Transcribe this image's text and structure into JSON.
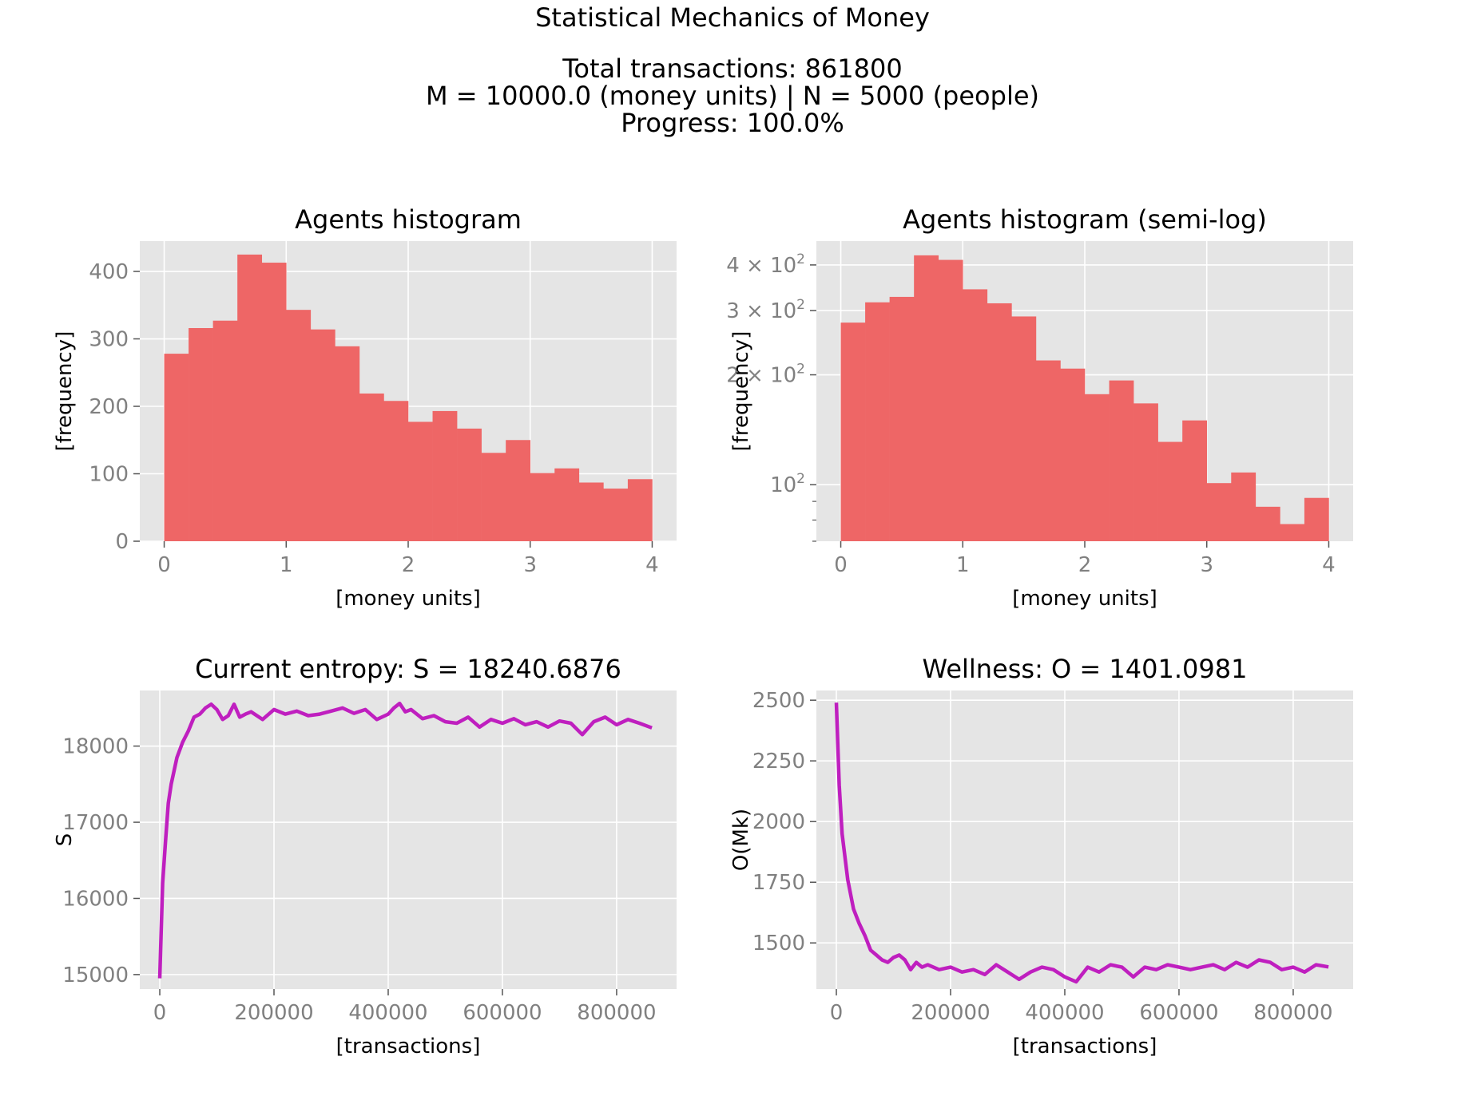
{
  "figure": {
    "title": "Statistical Mechanics of Money",
    "total_transactions_line": "Total transactions: 861800",
    "params_line": "M = 10000.0 (money units)   |    N = 5000 (people)",
    "progress_line": "Progress: 100.0%"
  },
  "colors": {
    "axes_bg": "#e5e5e5",
    "grid": "#ffffff",
    "bar": "#ee6666",
    "line": "#bf1fbf",
    "tick_text": "#808080"
  },
  "chart_data": [
    {
      "type": "bar",
      "title": "Agents histogram",
      "xlabel": "[money units]",
      "ylabel": "[frequency]",
      "xlim": [
        -0.2,
        4.2
      ],
      "ylim": [
        0,
        445
      ],
      "xticks": [
        0,
        1,
        2,
        3,
        4
      ],
      "yticks": [
        0,
        100,
        200,
        300,
        400
      ],
      "bin_edges": [
        0,
        0.2,
        0.4,
        0.6,
        0.8,
        1.0,
        1.2,
        1.4,
        1.6,
        1.8,
        2.0,
        2.2,
        2.4,
        2.6,
        2.8,
        3.0,
        3.2,
        3.4,
        3.6,
        3.8,
        4.0
      ],
      "values": [
        278,
        316,
        327,
        425,
        413,
        343,
        314,
        289,
        219,
        208,
        177,
        193,
        167,
        131,
        150,
        101,
        108,
        87,
        78,
        92
      ],
      "grid": true
    },
    {
      "type": "bar",
      "title": "Agents histogram (semi-log)",
      "xlabel": "[money units]",
      "ylabel": "[frequency]",
      "yscale": "log",
      "xlim": [
        -0.2,
        4.2
      ],
      "ylim": [
        70,
        465
      ],
      "xticks": [
        0,
        1,
        2,
        3,
        4
      ],
      "yticks": [
        {
          "value": 100,
          "base": "10",
          "exp": "2"
        },
        {
          "value": 200,
          "base": "2 × 10",
          "exp": "2"
        },
        {
          "value": 300,
          "base": "3 × 10",
          "exp": "2"
        },
        {
          "value": 400,
          "base": "4 × 10",
          "exp": "2"
        }
      ],
      "bin_edges": [
        0,
        0.2,
        0.4,
        0.6,
        0.8,
        1.0,
        1.2,
        1.4,
        1.6,
        1.8,
        2.0,
        2.2,
        2.4,
        2.6,
        2.8,
        3.0,
        3.2,
        3.4,
        3.6,
        3.8,
        4.0
      ],
      "values": [
        278,
        316,
        327,
        425,
        413,
        343,
        314,
        289,
        219,
        208,
        177,
        193,
        167,
        131,
        150,
        101,
        108,
        87,
        78,
        92
      ],
      "grid": true
    },
    {
      "type": "line",
      "title": "Current entropy: S = 18240.6876",
      "xlabel": "[transactions]",
      "ylabel": "S",
      "xlim": [
        -35000,
        905000
      ],
      "ylim": [
        14810,
        18730
      ],
      "xticks": [
        0,
        200000,
        400000,
        600000,
        800000
      ],
      "yticks": [
        15000,
        16000,
        17000,
        18000
      ],
      "x": [
        0,
        5000,
        10000,
        15000,
        20000,
        30000,
        40000,
        50000,
        60000,
        70000,
        80000,
        90000,
        100000,
        110000,
        120000,
        130000,
        140000,
        150000,
        160000,
        180000,
        200000,
        220000,
        240000,
        260000,
        280000,
        300000,
        320000,
        340000,
        360000,
        380000,
        400000,
        410000,
        420000,
        430000,
        440000,
        460000,
        480000,
        500000,
        520000,
        540000,
        560000,
        580000,
        600000,
        620000,
        640000,
        660000,
        680000,
        700000,
        720000,
        740000,
        760000,
        780000,
        800000,
        820000,
        840000,
        861800
      ],
      "values": [
        14950,
        16200,
        16750,
        17250,
        17500,
        17850,
        18050,
        18200,
        18380,
        18420,
        18500,
        18550,
        18480,
        18350,
        18400,
        18550,
        18380,
        18420,
        18450,
        18350,
        18480,
        18420,
        18460,
        18400,
        18420,
        18460,
        18500,
        18430,
        18480,
        18350,
        18420,
        18500,
        18560,
        18450,
        18480,
        18360,
        18400,
        18320,
        18300,
        18380,
        18250,
        18350,
        18300,
        18360,
        18280,
        18320,
        18250,
        18330,
        18300,
        18150,
        18320,
        18380,
        18280,
        18350,
        18300,
        18240
      ],
      "grid": true
    },
    {
      "type": "line",
      "title": "Wellness: O = 1401.0981",
      "xlabel": "[transactions]",
      "ylabel": "O(Mk)",
      "xlim": [
        -35000,
        905000
      ],
      "ylim": [
        1310,
        2540
      ],
      "xticks": [
        0,
        200000,
        400000,
        600000,
        800000
      ],
      "yticks": [
        1500,
        1750,
        2000,
        2250,
        2500
      ],
      "x": [
        0,
        5000,
        10000,
        20000,
        30000,
        40000,
        50000,
        60000,
        70000,
        80000,
        90000,
        100000,
        110000,
        120000,
        130000,
        140000,
        150000,
        160000,
        180000,
        200000,
        220000,
        240000,
        260000,
        280000,
        300000,
        320000,
        340000,
        360000,
        380000,
        400000,
        420000,
        440000,
        460000,
        480000,
        500000,
        520000,
        540000,
        560000,
        580000,
        600000,
        620000,
        640000,
        660000,
        680000,
        700000,
        720000,
        740000,
        760000,
        780000,
        800000,
        820000,
        840000,
        861800
      ],
      "values": [
        2490,
        2150,
        1950,
        1760,
        1640,
        1580,
        1530,
        1470,
        1450,
        1430,
        1420,
        1440,
        1450,
        1430,
        1390,
        1420,
        1400,
        1410,
        1390,
        1400,
        1380,
        1390,
        1370,
        1410,
        1380,
        1350,
        1380,
        1400,
        1390,
        1360,
        1340,
        1400,
        1380,
        1410,
        1400,
        1360,
        1400,
        1390,
        1410,
        1400,
        1390,
        1400,
        1410,
        1390,
        1420,
        1400,
        1430,
        1420,
        1390,
        1400,
        1380,
        1410,
        1401
      ],
      "grid": true
    }
  ]
}
